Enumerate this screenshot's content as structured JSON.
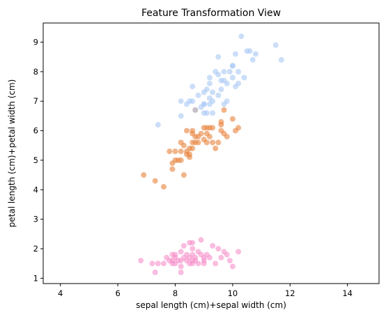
{
  "chart_data": {
    "type": "scatter",
    "title": "Feature Transformation View",
    "xlabel": "sepal length (cm)+sepal width (cm)",
    "ylabel": "petal length (cm)+petal width (cm)",
    "xlim": [
      3.4,
      15.1
    ],
    "ylim": [
      0.82,
      9.65
    ],
    "xticks": [
      4,
      6,
      8,
      10,
      12,
      14
    ],
    "yticks": [
      1,
      2,
      3,
      4,
      5,
      6,
      7,
      8,
      9
    ],
    "grid": false,
    "legend": "none",
    "series": [
      {
        "color": "#f78fc9",
        "points": [
          [
            6.8,
            1.6
          ],
          [
            7.2,
            1.5
          ],
          [
            7.3,
            1.2
          ],
          [
            7.4,
            1.5
          ],
          [
            7.6,
            1.5
          ],
          [
            7.7,
            1.7
          ],
          [
            7.8,
            1.6
          ],
          [
            7.9,
            1.6
          ],
          [
            7.9,
            1.8
          ],
          [
            8.0,
            1.5
          ],
          [
            8.0,
            1.7
          ],
          [
            8.0,
            1.8
          ],
          [
            8.1,
            1.6
          ],
          [
            8.2,
            1.9
          ],
          [
            8.2,
            1.4
          ],
          [
            8.2,
            1.2
          ],
          [
            8.3,
            2.1
          ],
          [
            8.3,
            1.7
          ],
          [
            8.4,
            1.6
          ],
          [
            8.5,
            1.5
          ],
          [
            8.5,
            2.2
          ],
          [
            8.5,
            1.7
          ],
          [
            8.6,
            1.5
          ],
          [
            8.6,
            2.2
          ],
          [
            8.6,
            1.6
          ],
          [
            8.6,
            2.0
          ],
          [
            8.7,
            1.7
          ],
          [
            8.7,
            1.6
          ],
          [
            8.8,
            1.9
          ],
          [
            8.8,
            1.5
          ],
          [
            8.9,
            2.3
          ],
          [
            8.9,
            1.8
          ],
          [
            9.0,
            1.6
          ],
          [
            9.0,
            1.5
          ],
          [
            9.1,
            1.8
          ],
          [
            9.2,
            1.7
          ],
          [
            9.3,
            2.1
          ],
          [
            9.4,
            1.5
          ],
          [
            9.5,
            2.0
          ],
          [
            9.6,
            1.7
          ],
          [
            9.7,
            1.9
          ],
          [
            9.9,
            1.6
          ],
          [
            10.0,
            1.4
          ],
          [
            10.2,
            1.9
          ],
          [
            7.9,
            1.5
          ],
          [
            8.4,
            1.8
          ],
          [
            9.8,
            1.8
          ],
          [
            8.2,
            1.6
          ],
          [
            8.6,
            1.8
          ],
          [
            9.0,
            1.7
          ]
        ]
      },
      {
        "color": "#e8823a",
        "points": [
          [
            6.9,
            4.5
          ],
          [
            7.3,
            4.3
          ],
          [
            7.6,
            4.1
          ],
          [
            7.8,
            5.3
          ],
          [
            7.9,
            4.7
          ],
          [
            7.9,
            4.9
          ],
          [
            8.0,
            5.3
          ],
          [
            8.1,
            5.0
          ],
          [
            8.2,
            5.6
          ],
          [
            8.2,
            5.0
          ],
          [
            8.3,
            4.5
          ],
          [
            8.3,
            5.5
          ],
          [
            8.4,
            6.0
          ],
          [
            8.5,
            5.2
          ],
          [
            8.5,
            5.1
          ],
          [
            8.6,
            5.6
          ],
          [
            8.6,
            5.4
          ],
          [
            8.6,
            6.0
          ],
          [
            8.7,
            5.6
          ],
          [
            8.7,
            6.7
          ],
          [
            8.8,
            5.8
          ],
          [
            8.8,
            5.6
          ],
          [
            8.9,
            5.9
          ],
          [
            9.0,
            6.1
          ],
          [
            9.0,
            5.7
          ],
          [
            9.1,
            5.6
          ],
          [
            9.1,
            5.9
          ],
          [
            9.2,
            6.1
          ],
          [
            9.3,
            5.6
          ],
          [
            9.3,
            6.1
          ],
          [
            9.4,
            5.4
          ],
          [
            9.5,
            5.6
          ],
          [
            9.6,
            6.2
          ],
          [
            9.6,
            6.0
          ],
          [
            9.7,
            5.9
          ],
          [
            9.7,
            6.7
          ],
          [
            9.8,
            5.8
          ],
          [
            10.0,
            6.4
          ],
          [
            10.1,
            6.0
          ],
          [
            10.2,
            6.1
          ],
          [
            8.0,
            5.0
          ],
          [
            8.5,
            5.4
          ],
          [
            8.4,
            5.3
          ],
          [
            8.6,
            5.9
          ],
          [
            9.2,
            5.8
          ],
          [
            9.6,
            6.3
          ],
          [
            8.4,
            5.2
          ],
          [
            8.2,
            5.3
          ],
          [
            8.7,
            5.8
          ],
          [
            9.1,
            6.1
          ]
        ]
      },
      {
        "color": "#a8c8f5",
        "points": [
          [
            7.4,
            6.2
          ],
          [
            8.2,
            6.5
          ],
          [
            8.2,
            7.0
          ],
          [
            8.4,
            6.9
          ],
          [
            8.5,
            7.0
          ],
          [
            8.6,
            7.5
          ],
          [
            8.6,
            7.0
          ],
          [
            8.8,
            7.2
          ],
          [
            8.9,
            6.8
          ],
          [
            9.0,
            6.9
          ],
          [
            9.0,
            7.3
          ],
          [
            9.0,
            6.6
          ],
          [
            9.1,
            6.6
          ],
          [
            9.2,
            7.1
          ],
          [
            9.2,
            7.6
          ],
          [
            9.2,
            7.8
          ],
          [
            9.3,
            7.0
          ],
          [
            9.4,
            8.0
          ],
          [
            9.5,
            8.5
          ],
          [
            9.5,
            7.9
          ],
          [
            9.5,
            7.2
          ],
          [
            9.6,
            7.7
          ],
          [
            9.6,
            7.4
          ],
          [
            9.7,
            8.0
          ],
          [
            9.8,
            7.6
          ],
          [
            9.8,
            7.0
          ],
          [
            9.9,
            8.0
          ],
          [
            10.0,
            7.8
          ],
          [
            10.0,
            8.2
          ],
          [
            10.1,
            7.5
          ],
          [
            10.1,
            8.6
          ],
          [
            10.2,
            8.0
          ],
          [
            10.2,
            7.6
          ],
          [
            10.3,
            9.2
          ],
          [
            10.4,
            7.8
          ],
          [
            10.5,
            8.7
          ],
          [
            10.6,
            8.7
          ],
          [
            10.7,
            8.4
          ],
          [
            10.8,
            8.6
          ],
          [
            11.5,
            8.9
          ],
          [
            11.7,
            8.4
          ],
          [
            9.3,
            6.6
          ],
          [
            9.0,
            6.9
          ],
          [
            10.0,
            8.2
          ],
          [
            9.7,
            6.9
          ],
          [
            8.7,
            6.7
          ],
          [
            9.3,
            7.3
          ],
          [
            9.1,
            7.4
          ],
          [
            9.2,
            6.9
          ],
          [
            9.7,
            7.7
          ]
        ]
      }
    ]
  }
}
